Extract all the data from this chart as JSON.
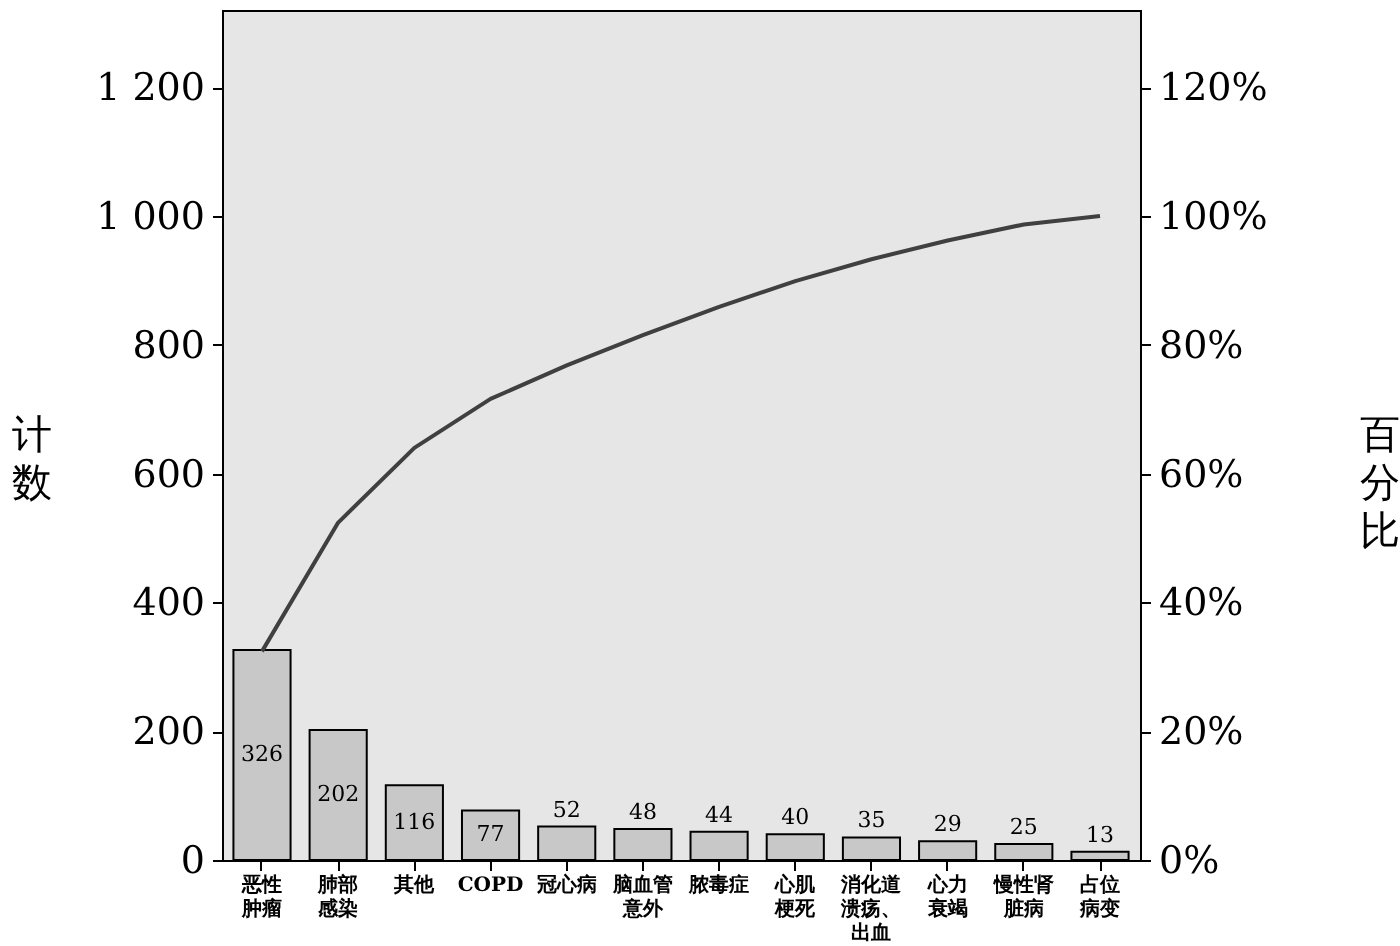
{
  "chart_data": {
    "type": "bar",
    "ylabel": "计数",
    "y2label": "百分比",
    "categories": [
      "恶性肿瘤",
      "肺部感染",
      "其他",
      "COPD",
      "冠心病",
      "脑血管意外",
      "脓毒症",
      "心肌梗死",
      "消化道溃疡、出血",
      "心力衰竭",
      "慢性肾脏病",
      "占位病变"
    ],
    "series": [
      {
        "color": "#c8c8c8",
        "values": [
          326,
          202,
          116,
          77,
          52,
          48,
          44,
          40,
          35,
          29,
          25,
          13
        ],
        "value_labels": [
          "326",
          "202",
          "116",
          "77",
          "52",
          "48",
          "44",
          "40",
          "35",
          "29",
          "25",
          "13"
        ]
      },
      {
        "type": "line",
        "axis": "y2",
        "color": "#404040",
        "values": [
          32.4,
          52.4,
          64.0,
          71.6,
          76.8,
          81.5,
          85.9,
          89.9,
          93.3,
          96.2,
          98.7,
          100
        ]
      }
    ],
    "ylim": [
      0,
      1320
    ],
    "yticks": [
      0,
      200,
      400,
      600,
      800,
      {
        "value": 1000,
        "label": "1 000"
      },
      {
        "value": 1200,
        "label": "1 200"
      }
    ],
    "y2lim": [
      0,
      132
    ],
    "y2ticks": [
      {
        "value": 0,
        "label": "0%"
      },
      {
        "value": 20,
        "label": "20%"
      },
      {
        "value": 40,
        "label": "40%"
      },
      {
        "value": 60,
        "label": "60%"
      },
      {
        "value": 80,
        "label": "80%"
      },
      {
        "value": 100,
        "label": "100%"
      },
      {
        "value": 120,
        "label": "120%"
      }
    ],
    "grid": false
  }
}
